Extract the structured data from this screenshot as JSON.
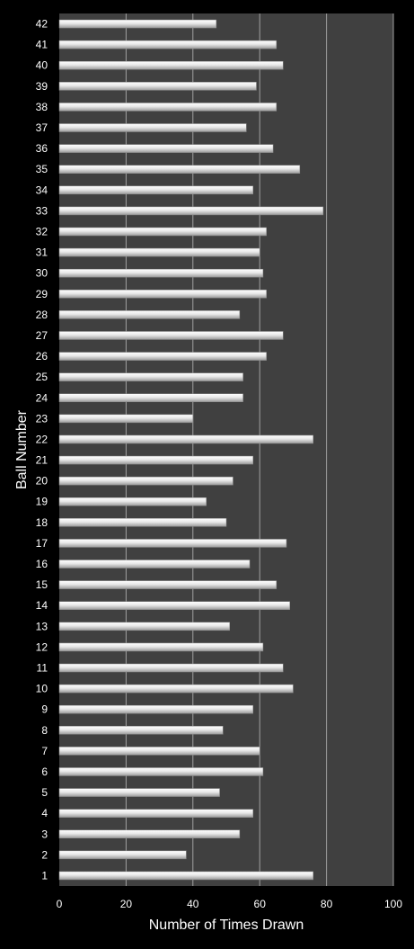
{
  "chart_data": {
    "type": "bar",
    "orientation": "horizontal",
    "title": "",
    "xlabel": "Number of Times Drawn",
    "ylabel": "Ball Number",
    "xlim": [
      0,
      100
    ],
    "xticks": [
      "0",
      "20",
      "40",
      "60",
      "80",
      "100"
    ],
    "grid": "vertical-major",
    "legend": "none",
    "categories": [
      "1",
      "2",
      "3",
      "4",
      "5",
      "6",
      "7",
      "8",
      "9",
      "10",
      "11",
      "12",
      "13",
      "14",
      "15",
      "16",
      "17",
      "18",
      "19",
      "20",
      "21",
      "22",
      "23",
      "24",
      "25",
      "26",
      "27",
      "28",
      "29",
      "30",
      "31",
      "32",
      "33",
      "34",
      "35",
      "36",
      "37",
      "38",
      "39",
      "40",
      "41",
      "42"
    ],
    "values": [
      76,
      38,
      54,
      58,
      48,
      61,
      60,
      49,
      58,
      70,
      67,
      61,
      51,
      69,
      65,
      57,
      68,
      50,
      44,
      52,
      58,
      76,
      40,
      55,
      55,
      62,
      67,
      54,
      62,
      61,
      60,
      62,
      79,
      58,
      72,
      64,
      56,
      65,
      59,
      67,
      65,
      47
    ],
    "colors": {
      "background": "#000000",
      "plot_area": "#404040",
      "bar_fill": "#e6e6e6",
      "gridline": "#a0a0a0",
      "text": "#ffffff"
    }
  }
}
